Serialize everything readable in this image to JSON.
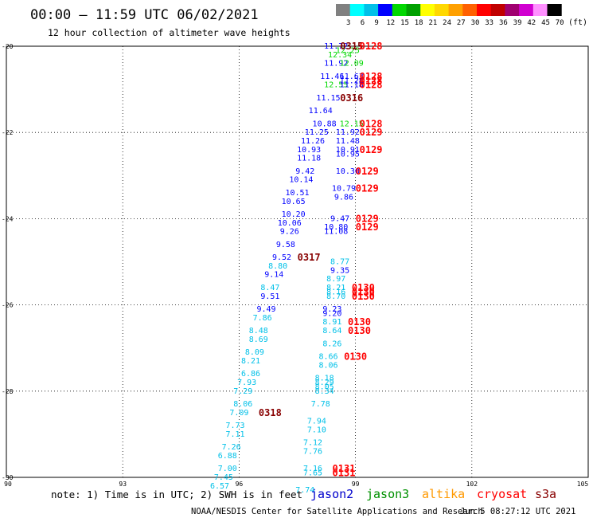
{
  "header": {
    "title": "00:00 – 11:59 UTC 06/02/2021",
    "subtitle": "12 hour collection of altimeter wave heights"
  },
  "colorbar": {
    "unit": "(ft)",
    "ticks": [
      "3",
      "6",
      "9",
      "12",
      "15",
      "18",
      "21",
      "24",
      "27",
      "30",
      "33",
      "36",
      "39",
      "42",
      "45",
      "70"
    ],
    "colors": [
      "#808080",
      "#00ffff",
      "#00c0e8",
      "#0000ff",
      "#00d800",
      "#00a000",
      "#ffff00",
      "#ffd800",
      "#ffa000",
      "#ff6000",
      "#ff0000",
      "#c00000",
      "#a00070",
      "#d000d0",
      "#ff90ff",
      "#000000"
    ]
  },
  "footer": {
    "note": "note: 1) Time is in UTC; 2) SWH is in feet",
    "credit": "NOAA/NESDIS Center for Satellite Applications and Research",
    "timestamp": "Jun  5 08:27:12 UTC 2021"
  },
  "legend": [
    {
      "name": "jason2",
      "color": "#0000cc"
    },
    {
      "name": "jason3",
      "color": "#009000"
    },
    {
      "name": "altika",
      "color": "#ff9900"
    },
    {
      "name": "cryosat",
      "color": "#ff0000"
    },
    {
      "name": "s3a",
      "color": "#880000"
    }
  ],
  "chart_data": {
    "type": "scatter",
    "title": "00:00 – 11:59 UTC 06/02/2021",
    "subtitle": "12 hour collection of altimeter wave heights",
    "xlim": [
      90,
      105
    ],
    "ylim": [
      -30,
      -20
    ],
    "xticks": [
      "90",
      "93",
      "96",
      "99",
      "102",
      "105"
    ],
    "yticks": [
      "-20",
      "-22",
      "-24",
      "-26",
      "-28",
      "-30"
    ],
    "grid": true,
    "value_colors": {
      "6-9": "#00c0e8",
      "9-12": "#0000ff",
      "12-15": "#00d800",
      "label": "#ff0000",
      "label_dark": "#880000"
    },
    "points": [
      {
        "x": 98.5,
        "y": -20.0,
        "t": "11.72"
      },
      {
        "x": 98.6,
        "y": -20.2,
        "t": "12.34"
      },
      {
        "x": 98.5,
        "y": -20.4,
        "t": "11.92"
      },
      {
        "x": 98.4,
        "y": -20.7,
        "t": "11.46"
      },
      {
        "x": 98.5,
        "y": -20.9,
        "t": "12.55"
      },
      {
        "x": 98.3,
        "y": -21.2,
        "t": "11.15"
      },
      {
        "x": 98.1,
        "y": -21.5,
        "t": "11.64"
      },
      {
        "x": 98.2,
        "y": -21.8,
        "t": "10.88"
      },
      {
        "x": 98.0,
        "y": -22.0,
        "t": "11.25"
      },
      {
        "x": 97.9,
        "y": -22.2,
        "t": "11.26"
      },
      {
        "x": 97.8,
        "y": -22.4,
        "t": "10.93"
      },
      {
        "x": 97.8,
        "y": -22.6,
        "t": "11.18"
      },
      {
        "x": 97.7,
        "y": -22.9,
        "t": "9.42"
      },
      {
        "x": 97.6,
        "y": -23.1,
        "t": "10.14"
      },
      {
        "x": 97.5,
        "y": -23.4,
        "t": "10.51"
      },
      {
        "x": 97.4,
        "y": -23.6,
        "t": "10.65"
      },
      {
        "x": 97.4,
        "y": -23.9,
        "t": "10.20"
      },
      {
        "x": 97.3,
        "y": -24.1,
        "t": "10.06"
      },
      {
        "x": 97.3,
        "y": -24.3,
        "t": "9.26"
      },
      {
        "x": 97.2,
        "y": -24.6,
        "t": "9.58"
      },
      {
        "x": 97.1,
        "y": -24.9,
        "t": "9.52"
      },
      {
        "x": 97.0,
        "y": -25.1,
        "t": "8.80"
      },
      {
        "x": 96.9,
        "y": -25.3,
        "t": "9.14"
      },
      {
        "x": 96.8,
        "y": -25.6,
        "t": "8.47"
      },
      {
        "x": 96.8,
        "y": -25.8,
        "t": "9.51"
      },
      {
        "x": 96.7,
        "y": -26.1,
        "t": "9.49"
      },
      {
        "x": 96.6,
        "y": -26.3,
        "t": "7.86"
      },
      {
        "x": 96.5,
        "y": -26.6,
        "t": "8.48"
      },
      {
        "x": 96.5,
        "y": -26.8,
        "t": "8.69"
      },
      {
        "x": 96.4,
        "y": -27.1,
        "t": "8.09"
      },
      {
        "x": 96.3,
        "y": -27.3,
        "t": "8.21"
      },
      {
        "x": 96.3,
        "y": -27.6,
        "t": "6.86"
      },
      {
        "x": 96.2,
        "y": -27.8,
        "t": "7.93"
      },
      {
        "x": 96.1,
        "y": -28.0,
        "t": "7.29"
      },
      {
        "x": 96.1,
        "y": -28.3,
        "t": "8.06"
      },
      {
        "x": 96.0,
        "y": -28.5,
        "t": "7.09"
      },
      {
        "x": 95.9,
        "y": -28.8,
        "t": "7.73"
      },
      {
        "x": 95.9,
        "y": -29.0,
        "t": "7.11"
      },
      {
        "x": 95.8,
        "y": -29.3,
        "t": "7.26"
      },
      {
        "x": 95.7,
        "y": -29.5,
        "t": "6.88"
      },
      {
        "x": 95.7,
        "y": -29.8,
        "t": "7.00"
      },
      {
        "x": 95.6,
        "y": -30.0,
        "t": "7.45"
      },
      {
        "x": 95.5,
        "y": -30.2,
        "t": "6.57"
      },
      {
        "x": 98.8,
        "y": -20.1,
        "t": "12.25"
      },
      {
        "x": 98.9,
        "y": -20.4,
        "t": "12.09"
      },
      {
        "x": 98.9,
        "y": -20.7,
        "t": "11.63"
      },
      {
        "x": 98.9,
        "y": -20.8,
        "t": "11.28"
      },
      {
        "x": 98.9,
        "y": -20.9,
        "t": "11.18"
      },
      {
        "x": 98.9,
        "y": -21.8,
        "t": "12.15"
      },
      {
        "x": 98.8,
        "y": -22.0,
        "t": "11.92"
      },
      {
        "x": 98.8,
        "y": -22.2,
        "t": "11.48"
      },
      {
        "x": 98.8,
        "y": -22.4,
        "t": "10.91"
      },
      {
        "x": 98.8,
        "y": -22.5,
        "t": "10.95"
      },
      {
        "x": 98.8,
        "y": -22.9,
        "t": "10.30"
      },
      {
        "x": 98.7,
        "y": -23.3,
        "t": "10.79"
      },
      {
        "x": 98.7,
        "y": -23.5,
        "t": "9.86"
      },
      {
        "x": 98.6,
        "y": -24.0,
        "t": "9.47"
      },
      {
        "x": 98.5,
        "y": -24.2,
        "t": "10.80"
      },
      {
        "x": 98.5,
        "y": -24.3,
        "t": "11.08"
      },
      {
        "x": 98.6,
        "y": -25.0,
        "t": "8.77"
      },
      {
        "x": 98.6,
        "y": -25.2,
        "t": "9.35"
      },
      {
        "x": 98.5,
        "y": -25.4,
        "t": "8.97"
      },
      {
        "x": 98.5,
        "y": -25.6,
        "t": "8.21"
      },
      {
        "x": 98.5,
        "y": -25.7,
        "t": "8.16"
      },
      {
        "x": 98.5,
        "y": -25.8,
        "t": "8.70"
      },
      {
        "x": 98.4,
        "y": -26.1,
        "t": "9.23"
      },
      {
        "x": 98.4,
        "y": -26.2,
        "t": "9.20"
      },
      {
        "x": 98.4,
        "y": -26.4,
        "t": "8.91"
      },
      {
        "x": 98.4,
        "y": -26.6,
        "t": "8.64"
      },
      {
        "x": 98.4,
        "y": -26.9,
        "t": "8.26"
      },
      {
        "x": 98.3,
        "y": -27.2,
        "t": "8.66"
      },
      {
        "x": 98.3,
        "y": -27.4,
        "t": "8.06"
      },
      {
        "x": 98.2,
        "y": -27.7,
        "t": "8.18"
      },
      {
        "x": 98.2,
        "y": -27.8,
        "t": "8.29"
      },
      {
        "x": 98.2,
        "y": -27.9,
        "t": "8.05"
      },
      {
        "x": 98.2,
        "y": -28.0,
        "t": "8.34"
      },
      {
        "x": 98.1,
        "y": -28.3,
        "t": "7.78"
      },
      {
        "x": 98.0,
        "y": -28.7,
        "t": "7.94"
      },
      {
        "x": 98.0,
        "y": -28.9,
        "t": "7.10"
      },
      {
        "x": 97.9,
        "y": -29.2,
        "t": "7.12"
      },
      {
        "x": 97.9,
        "y": -29.4,
        "t": "7.76"
      },
      {
        "x": 97.9,
        "y": -29.8,
        "t": "7.16"
      },
      {
        "x": 97.9,
        "y": -29.9,
        "t": "7.65"
      },
      {
        "x": 97.7,
        "y": -30.3,
        "t": "7.74"
      }
    ],
    "pass_labels": [
      {
        "x": 98.9,
        "y": -20.0,
        "t": "0315",
        "c": "label_dark"
      },
      {
        "x": 99.4,
        "y": -20.0,
        "t": "0128",
        "c": "label"
      },
      {
        "x": 99.4,
        "y": -20.7,
        "t": "0128",
        "c": "label"
      },
      {
        "x": 99.4,
        "y": -20.8,
        "t": "0128",
        "c": "label"
      },
      {
        "x": 99.4,
        "y": -20.9,
        "t": "0128",
        "c": "label"
      },
      {
        "x": 98.9,
        "y": -21.2,
        "t": "0316",
        "c": "label_dark"
      },
      {
        "x": 99.4,
        "y": -21.8,
        "t": "0128",
        "c": "label"
      },
      {
        "x": 99.4,
        "y": -22.0,
        "t": "0129",
        "c": "label"
      },
      {
        "x": 99.4,
        "y": -22.4,
        "t": "0129",
        "c": "label"
      },
      {
        "x": 99.3,
        "y": -22.9,
        "t": "0129",
        "c": "label"
      },
      {
        "x": 99.3,
        "y": -23.3,
        "t": "0129",
        "c": "label"
      },
      {
        "x": 99.3,
        "y": -24.0,
        "t": "0129",
        "c": "label"
      },
      {
        "x": 99.3,
        "y": -24.2,
        "t": "0129",
        "c": "label"
      },
      {
        "x": 97.8,
        "y": -24.9,
        "t": "0317",
        "c": "label_dark"
      },
      {
        "x": 99.2,
        "y": -25.6,
        "t": "0130",
        "c": "label"
      },
      {
        "x": 99.2,
        "y": -25.7,
        "t": "0130",
        "c": "label"
      },
      {
        "x": 99.2,
        "y": -25.8,
        "t": "0130",
        "c": "label"
      },
      {
        "x": 99.1,
        "y": -26.4,
        "t": "0130",
        "c": "label"
      },
      {
        "x": 99.1,
        "y": -26.6,
        "t": "0130",
        "c": "label"
      },
      {
        "x": 99.0,
        "y": -27.2,
        "t": "0130",
        "c": "label"
      },
      {
        "x": 96.8,
        "y": -28.5,
        "t": "0318",
        "c": "label_dark"
      },
      {
        "x": 98.7,
        "y": -29.8,
        "t": "0131",
        "c": "label"
      },
      {
        "x": 98.7,
        "y": -29.9,
        "t": "0131",
        "c": "label"
      }
    ]
  }
}
